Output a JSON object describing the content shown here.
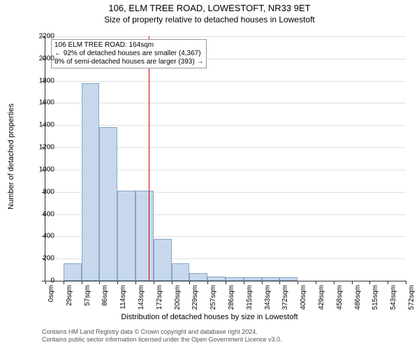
{
  "title": "106, ELM TREE ROAD, LOWESTOFT, NR33 9ET",
  "subtitle": "Size of property relative to detached houses in Lowestoft",
  "ylabel": "Number of detached properties",
  "xlabel": "Distribution of detached houses by size in Lowestoft",
  "chart": {
    "type": "histogram",
    "ylim": [
      0,
      2200
    ],
    "ytick_step": 200,
    "xticks": [
      "0sqm",
      "29sqm",
      "57sqm",
      "86sqm",
      "114sqm",
      "143sqm",
      "172sqm",
      "200sqm",
      "229sqm",
      "257sqm",
      "286sqm",
      "315sqm",
      "343sqm",
      "372sqm",
      "400sqm",
      "429sqm",
      "458sqm",
      "486sqm",
      "515sqm",
      "543sqm",
      "572sqm"
    ],
    "values": [
      0,
      160,
      1780,
      1380,
      810,
      810,
      380,
      160,
      70,
      40,
      30,
      30,
      30,
      30,
      0,
      0,
      0,
      0,
      0,
      0
    ],
    "bar_fill": "#c8d8ec",
    "bar_stroke": "#88a5c8",
    "grid_color": "#e0e0e0",
    "reference_line_x_value": 164,
    "reference_line_color": "#d00000"
  },
  "annotation": {
    "line1": "106 ELM TREE ROAD: 164sqm",
    "line2": "← 92% of detached houses are smaller (4,367)",
    "line3": "8% of semi-detached houses are larger (393) →"
  },
  "footer": {
    "line1": "Contains HM Land Registry data © Crown copyright and database right 2024.",
    "line2": "Contains public sector information licensed under the Open Government Licence v3.0."
  }
}
